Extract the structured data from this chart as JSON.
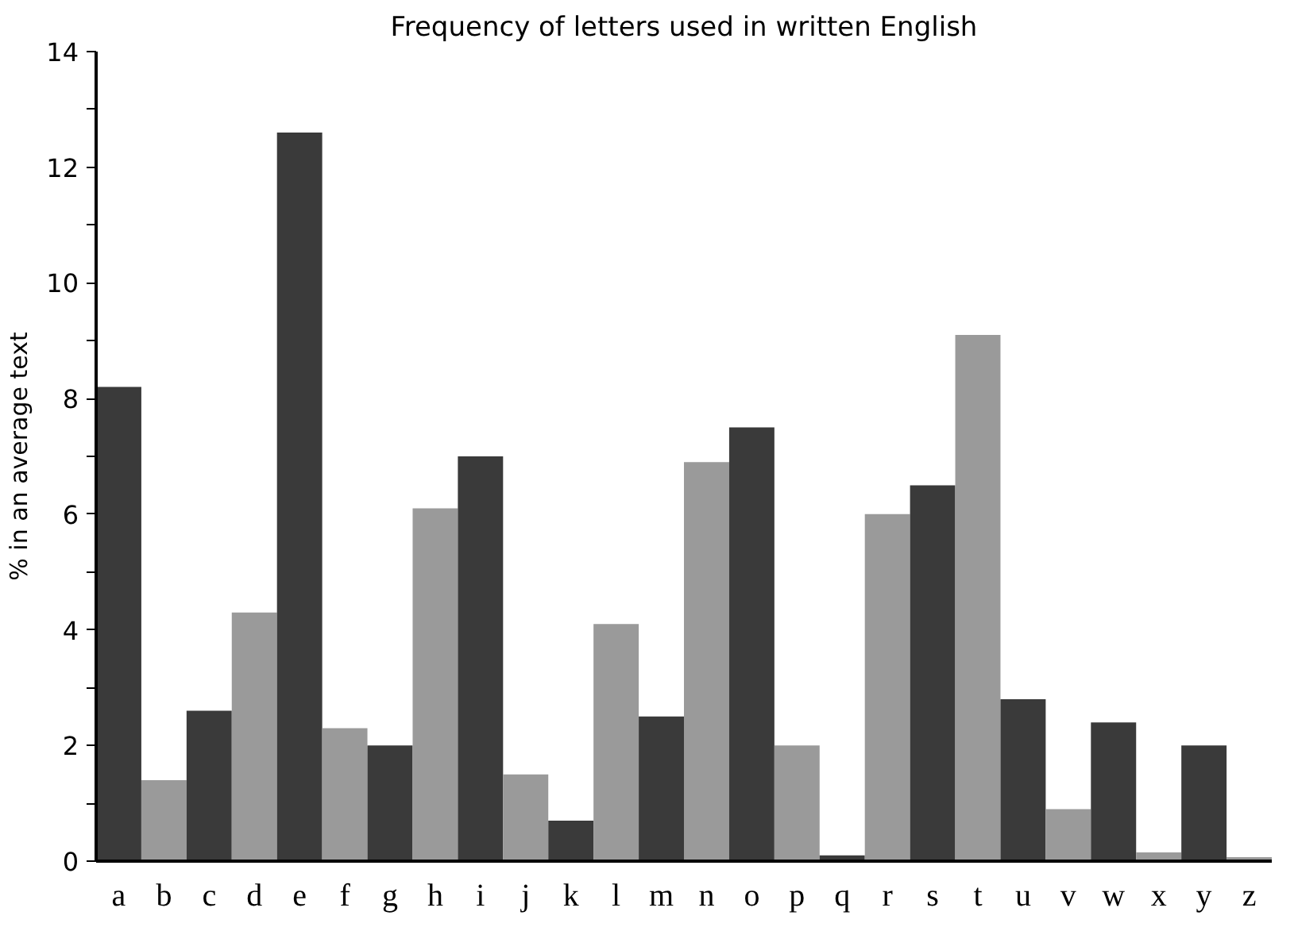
{
  "chart_data": {
    "type": "bar",
    "title": "Frequency of letters used in written English",
    "ylabel": "% in an average text",
    "categories": [
      "a",
      "b",
      "c",
      "d",
      "e",
      "f",
      "g",
      "h",
      "i",
      "j",
      "k",
      "l",
      "m",
      "n",
      "o",
      "p",
      "q",
      "r",
      "s",
      "t",
      "u",
      "v",
      "w",
      "x",
      "y",
      "z"
    ],
    "values": [
      8.2,
      1.4,
      2.6,
      4.3,
      12.6,
      2.3,
      2.0,
      6.1,
      7.0,
      1.5,
      0.7,
      4.1,
      2.5,
      6.9,
      7.5,
      2.0,
      0.1,
      6.0,
      6.5,
      9.1,
      2.8,
      0.9,
      2.4,
      0.15,
      2.0,
      0.07
    ],
    "colors": [
      "#3a3a3a",
      "#9a9a9a",
      "#3a3a3a",
      "#9a9a9a",
      "#3a3a3a",
      "#9a9a9a",
      "#3a3a3a",
      "#9a9a9a",
      "#3a3a3a",
      "#9a9a9a",
      "#3a3a3a",
      "#9a9a9a",
      "#3a3a3a",
      "#9a9a9a",
      "#3a3a3a",
      "#9a9a9a",
      "#3a3a3a",
      "#9a9a9a",
      "#3a3a3a",
      "#9a9a9a",
      "#3a3a3a",
      "#9a9a9a",
      "#3a3a3a",
      "#9a9a9a",
      "#3a3a3a",
      "#9a9a9a"
    ],
    "ylim": [
      0,
      14
    ],
    "yticks": [
      0,
      {
        "value": 1,
        "label": null
      },
      2,
      {
        "value": 3,
        "label": null
      },
      4,
      {
        "value": 5,
        "label": null
      },
      6,
      {
        "value": 7,
        "label": null
      },
      8,
      {
        "value": 9,
        "label": null
      },
      10,
      {
        "value": 11,
        "label": null
      },
      12,
      {
        "value": 13,
        "label": null
      },
      14
    ],
    "grid": false
  }
}
